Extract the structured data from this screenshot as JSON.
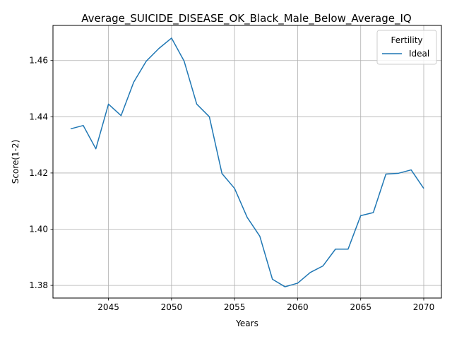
{
  "chart_data": {
    "type": "line",
    "title": "Average_SUICIDE_DISEASE_OK_Black_Male_Below_Average_IQ",
    "xlabel": "Years",
    "ylabel": "Score(1-2)",
    "xlim": [
      2040.6,
      2071.4
    ],
    "ylim": [
      1.3755,
      1.4725
    ],
    "xticks": [
      2045,
      2050,
      2055,
      2060,
      2065,
      2070
    ],
    "yticks": [
      1.38,
      1.4,
      1.42,
      1.44,
      1.46
    ],
    "ytick_labels": [
      "1.38",
      "1.40",
      "1.42",
      "1.44",
      "1.46"
    ],
    "grid": true,
    "legend": {
      "title": "Fertility",
      "position": "top-right"
    },
    "series": [
      {
        "name": "Ideal",
        "color": "#1f77b4",
        "x": [
          2042,
          2043,
          2044,
          2045,
          2046,
          2047,
          2048,
          2049,
          2050,
          2051,
          2052,
          2053,
          2054,
          2055,
          2056,
          2057,
          2058,
          2059,
          2060,
          2061,
          2062,
          2063,
          2064,
          2065,
          2066,
          2067,
          2068,
          2069,
          2070
        ],
        "y": [
          1.4357,
          1.4369,
          1.4286,
          1.4445,
          1.4404,
          1.4523,
          1.4598,
          1.4643,
          1.468,
          1.4598,
          1.4445,
          1.44,
          1.4198,
          1.4145,
          1.4042,
          1.3975,
          1.3822,
          1.3795,
          1.3808,
          1.3846,
          1.3869,
          1.3929,
          1.3929,
          1.4048,
          1.4059,
          1.4196,
          1.4199,
          1.4211,
          1.4145
        ]
      }
    ]
  }
}
